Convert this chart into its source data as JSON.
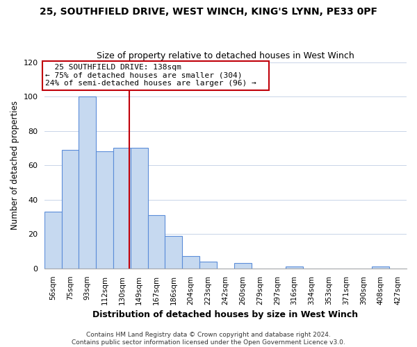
{
  "title": "25, SOUTHFIELD DRIVE, WEST WINCH, KING'S LYNN, PE33 0PF",
  "subtitle": "Size of property relative to detached houses in West Winch",
  "bar_labels": [
    "56sqm",
    "75sqm",
    "93sqm",
    "112sqm",
    "130sqm",
    "149sqm",
    "167sqm",
    "186sqm",
    "204sqm",
    "223sqm",
    "242sqm",
    "260sqm",
    "279sqm",
    "297sqm",
    "316sqm",
    "334sqm",
    "353sqm",
    "371sqm",
    "390sqm",
    "408sqm",
    "427sqm"
  ],
  "bar_heights": [
    33,
    69,
    100,
    68,
    70,
    70,
    31,
    19,
    7,
    4,
    0,
    3,
    0,
    0,
    1,
    0,
    0,
    0,
    0,
    1,
    0
  ],
  "bar_color": "#c6d9f0",
  "bar_edge_color": "#5b8dd9",
  "vline_color": "#c0000a",
  "ylim": [
    0,
    120
  ],
  "yticks": [
    0,
    20,
    40,
    60,
    80,
    100,
    120
  ],
  "ylabel": "Number of detached properties",
  "xlabel": "Distribution of detached houses by size in West Winch",
  "annotation_title": "25 SOUTHFIELD DRIVE: 138sqm",
  "annotation_line1": "← 75% of detached houses are smaller (304)",
  "annotation_line2": "24% of semi-detached houses are larger (96) →",
  "annotation_box_color": "#ffffff",
  "annotation_box_edge": "#c0000a",
  "footer_line1": "Contains HM Land Registry data © Crown copyright and database right 2024.",
  "footer_line2": "Contains public sector information licensed under the Open Government Licence v3.0.",
  "background_color": "#ffffff",
  "grid_color": "#c8d4e8"
}
